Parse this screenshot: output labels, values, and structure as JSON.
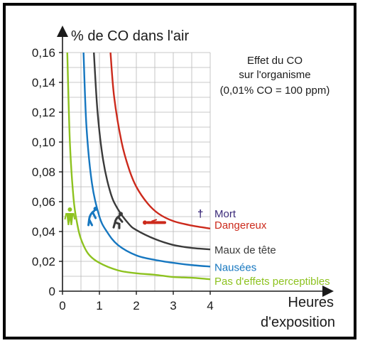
{
  "chart_data": {
    "type": "line",
    "title": "",
    "ylabel": "% de CO dans l'air",
    "xlabel_line1": "Heures",
    "xlabel_line2": "d'exposition",
    "info": {
      "line1": "Effet du CO",
      "line2": "sur l'organisme",
      "line3": "(0,01% CO = 100 ppm)"
    },
    "xlim": [
      0,
      4
    ],
    "ylim": [
      0,
      0.16
    ],
    "x_ticks": [
      0,
      1,
      2,
      3,
      4
    ],
    "x_tick_labels": [
      "0",
      "1",
      "2",
      "3",
      "4"
    ],
    "y_ticks": [
      0,
      0.02,
      0.04,
      0.06,
      0.08,
      0.1,
      0.12,
      0.14,
      0.16
    ],
    "y_tick_labels": [
      "0",
      "0,02",
      "0,04",
      "0,06",
      "0,08",
      "0,10",
      "0,12",
      "0,14",
      "0,16"
    ],
    "grid": true,
    "series": [
      {
        "name": "Pas d'effets perceptibles",
        "color": "#8dc21f",
        "x": [
          0.13,
          0.2,
          0.3,
          0.4,
          0.5,
          0.7,
          1.0,
          1.5,
          2.0,
          2.5,
          3.0,
          3.5,
          4.0
        ],
        "y": [
          0.16,
          0.1,
          0.062,
          0.045,
          0.035,
          0.025,
          0.019,
          0.014,
          0.012,
          0.011,
          0.0095,
          0.009,
          0.008
        ]
      },
      {
        "name": "Nausées",
        "color": "#1677c0",
        "x": [
          0.57,
          0.65,
          0.8,
          1.0,
          1.2,
          1.5,
          2.0,
          2.5,
          3.0,
          3.5,
          4.0
        ],
        "y": [
          0.16,
          0.11,
          0.072,
          0.05,
          0.04,
          0.031,
          0.024,
          0.021,
          0.019,
          0.0175,
          0.0165
        ]
      },
      {
        "name": "Maux de tête",
        "color": "#3a3a3a",
        "x": [
          0.85,
          0.95,
          1.1,
          1.3,
          1.5,
          1.8,
          2.0,
          2.5,
          3.0,
          3.5,
          4.0
        ],
        "y": [
          0.16,
          0.12,
          0.088,
          0.066,
          0.055,
          0.045,
          0.041,
          0.035,
          0.031,
          0.029,
          0.028
        ]
      },
      {
        "name": "Dangereux",
        "color": "#cc2a1c",
        "x": [
          1.3,
          1.4,
          1.6,
          1.8,
          2.0,
          2.3,
          2.6,
          3.0,
          3.5,
          4.0
        ],
        "y": [
          0.16,
          0.13,
          0.1,
          0.082,
          0.07,
          0.059,
          0.052,
          0.047,
          0.044,
          0.042
        ]
      }
    ],
    "legend_extra": {
      "name": "Mort",
      "color": "#3b2a7a",
      "symbol": "†"
    },
    "pictograms": [
      {
        "name": "standing-person-icon",
        "color": "#8dc21f",
        "x": 0.2,
        "y": 0.05
      },
      {
        "name": "bent-person-icon",
        "color": "#1677c0",
        "x": 0.78,
        "y": 0.05
      },
      {
        "name": "crouching-person-icon",
        "color": "#3a3a3a",
        "x": 1.5,
        "y": 0.048
      },
      {
        "name": "lying-person-icon",
        "color": "#cc2a1c",
        "x": 2.5,
        "y": 0.046
      }
    ],
    "legend_placement": "right"
  }
}
